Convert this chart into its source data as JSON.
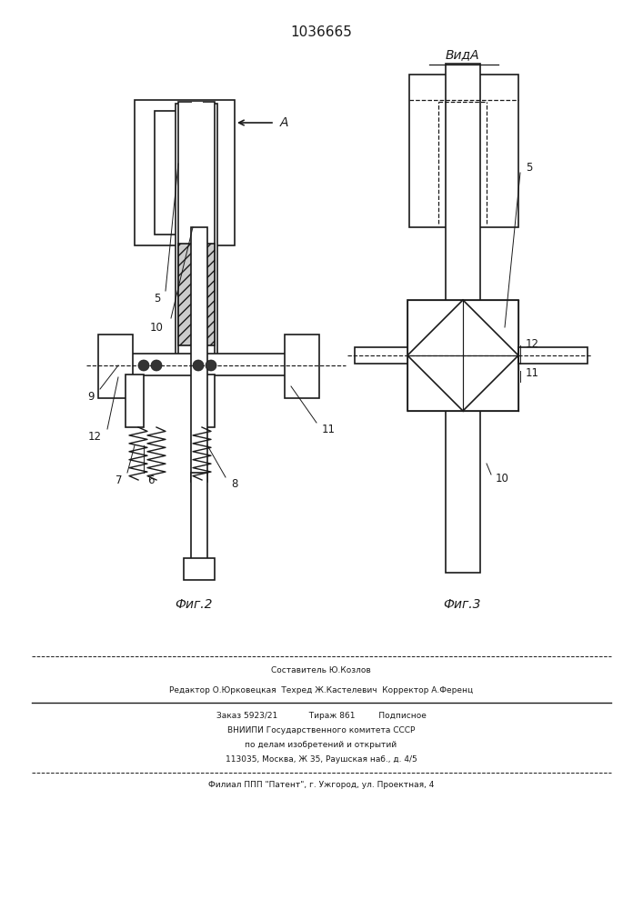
{
  "patent_number": "1036665",
  "fig2_label": "Фиг.2",
  "fig3_label": "Фиг.3",
  "view_label": "ВидА",
  "arrow_label": "A",
  "line_color": "#1a1a1a",
  "footer_lines": [
    "Составитель Ю.Козлов",
    "Редактор О.Юрковецкая  Техред Ж.Кастелевич  Корректор А.Ференц",
    "Заказ 5923/21            Тираж 861         Подписное",
    "ВНИИПИ Государственного комитета СССР",
    "по делам изобретений и открытий",
    "113035, Москва, Ж 35, Раушская наб., д. 4/5",
    "Филиал ППП \"Патент\", г. Ужгород, ул. Проектная, 4"
  ]
}
